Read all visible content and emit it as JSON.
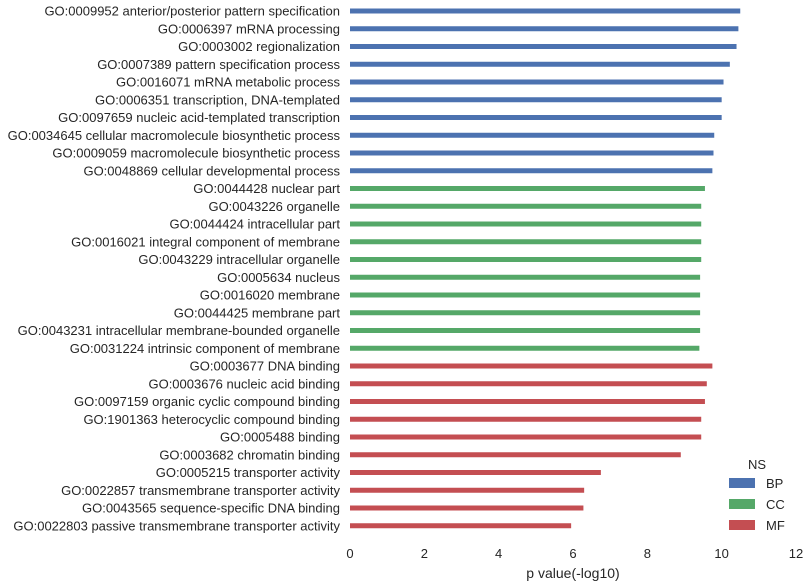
{
  "chart_data": {
    "type": "bar",
    "orientation": "horizontal",
    "xlabel": "p value(-log10)",
    "ylabel": "",
    "title": "",
    "xlim": [
      0,
      12
    ],
    "xticks": [
      0,
      2,
      4,
      6,
      8,
      10,
      12
    ],
    "grid": false,
    "legend": {
      "title": "NS",
      "placement": "bottom-right",
      "entries": [
        {
          "name": "BP",
          "color": "#4c72b0"
        },
        {
          "name": "CC",
          "color": "#55a868"
        },
        {
          "name": "MF",
          "color": "#c44e52"
        }
      ]
    },
    "categories": [
      "GO:0009952 anterior/posterior pattern specification",
      "GO:0006397 mRNA processing",
      "GO:0003002 regionalization",
      "GO:0007389 pattern specification process",
      "GO:0016071 mRNA metabolic process",
      "GO:0006351 transcription, DNA-templated",
      "GO:0097659 nucleic acid-templated transcription",
      "GO:0034645 cellular macromolecule biosynthetic process",
      "GO:0009059 macromolecule biosynthetic process",
      "GO:0048869 cellular developmental process",
      "GO:0044428 nuclear part",
      "GO:0043226 organelle",
      "GO:0044424 intracellular part",
      "GO:0016021 integral component of membrane",
      "GO:0043229 intracellular organelle",
      "GO:0005634 nucleus",
      "GO:0016020 membrane",
      "GO:0044425 membrane part",
      "GO:0043231 intracellular membrane-bounded organelle",
      "GO:0031224 intrinsic component of membrane",
      "GO:0003677 DNA binding",
      "GO:0003676 nucleic acid binding",
      "GO:0097159 organic cyclic compound binding",
      "GO:1901363 heterocyclic compound binding",
      "GO:0005488 binding",
      "GO:0003682 chromatin binding",
      "GO:0005215 transporter activity",
      "GO:0022857 transmembrane transporter activity",
      "GO:0043565 sequence-specific DNA binding",
      "GO:0022803 passive transmembrane transporter activity"
    ],
    "values": [
      10.5,
      10.45,
      10.4,
      10.22,
      10.05,
      10.0,
      10.0,
      9.8,
      9.78,
      9.75,
      9.55,
      9.45,
      9.45,
      9.45,
      9.45,
      9.42,
      9.42,
      9.42,
      9.42,
      9.4,
      9.75,
      9.6,
      9.55,
      9.45,
      9.45,
      8.9,
      6.75,
      6.3,
      6.28,
      5.95
    ],
    "groups": [
      "BP",
      "BP",
      "BP",
      "BP",
      "BP",
      "BP",
      "BP",
      "BP",
      "BP",
      "BP",
      "CC",
      "CC",
      "CC",
      "CC",
      "CC",
      "CC",
      "CC",
      "CC",
      "CC",
      "CC",
      "MF",
      "MF",
      "MF",
      "MF",
      "MF",
      "MF",
      "MF",
      "MF",
      "MF",
      "MF"
    ]
  }
}
